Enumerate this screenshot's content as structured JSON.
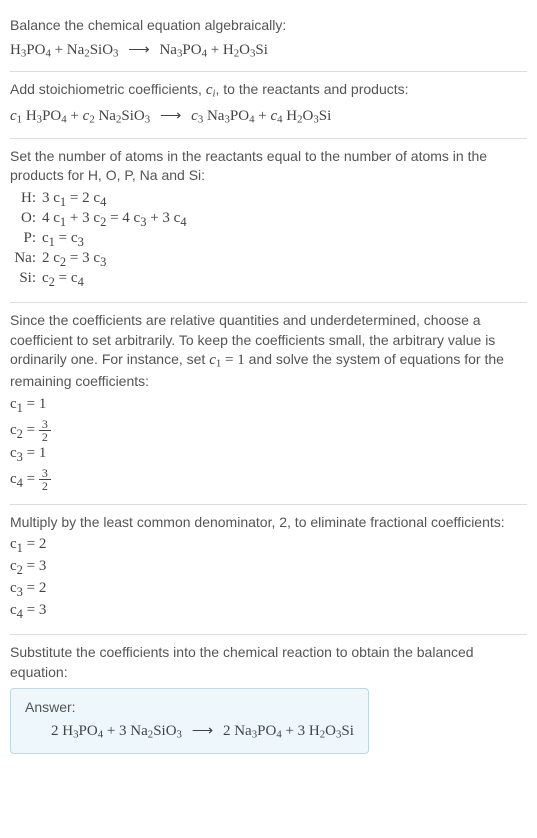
{
  "intro": {
    "label": "Balance the chemical equation algebraically:",
    "eq_lhs1": "H",
    "eq_lhs2": "PO",
    "eq_lhs3": " + Na",
    "eq_lhs4": "SiO",
    "eq_rhs1": "Na",
    "eq_rhs2": "PO",
    "eq_rhs3": " + H",
    "eq_rhs4": "O",
    "eq_rhs5": "Si",
    "arrow": "⟶"
  },
  "step_coeff_intro": {
    "text_a": "Add stoichiometric coefficients, ",
    "ci": "c",
    "ci_sub": "i",
    "text_b": ", to the reactants and products:"
  },
  "coeff_eq": {
    "c1": "c",
    "c1s": "1",
    "sp1": " H",
    "sp1b": "PO",
    "c2": "c",
    "c2s": "2",
    "sp2": " Na",
    "sp2b": "SiO",
    "c3": "c",
    "c3s": "3",
    "sp3": " Na",
    "sp3b": "PO",
    "c4": "c",
    "c4s": "4",
    "sp4": " H",
    "sp4b": "O",
    "sp4c": "Si",
    "arrow": "⟶"
  },
  "atoms_intro": "Set the number of atoms in the reactants equal to the number of atoms in the products for H, O, P, Na and Si:",
  "atom_rows": [
    {
      "elm": "H:",
      "eq": "3 c₁ = 2 c₄"
    },
    {
      "elm": "O:",
      "eq": "4 c₁ + 3 c₂ = 4 c₃ + 3 c₄"
    },
    {
      "elm": "P:",
      "eq": "c₁ = c₃"
    },
    {
      "elm": "Na:",
      "eq": "2 c₂ = 3 c₃"
    },
    {
      "elm": "Si:",
      "eq": "c₂ = c₄"
    }
  ],
  "relative_text_a": "Since the coefficients are relative quantities and underdetermined, choose a coefficient to set arbitrarily. To keep the coefficients small, the arbitrary value is ordinarily one. For instance, set ",
  "relative_c": "c",
  "relative_cs": "1",
  "relative_eq": " = 1",
  "relative_text_b": " and solve the system of equations for the remaining coefficients:",
  "solve": {
    "l1": "c₁ = 1",
    "l2_pre": "c₂ = ",
    "l3": "c₃ = 1",
    "l4_pre": "c₄ = ",
    "frac_n": "3",
    "frac_d": "2"
  },
  "lcm_text": "Multiply by the least common denominator, 2, to eliminate fractional coefficients:",
  "lcm": {
    "l1": "c₁ = 2",
    "l2": "c₂ = 3",
    "l3": "c₃ = 2",
    "l4": "c₄ = 3"
  },
  "subst_text": "Substitute the coefficients into the chemical reaction to obtain the balanced equation:",
  "answer": {
    "label": "Answer:",
    "a1": "2 H",
    "a2": "PO",
    "a3": " + 3 Na",
    "a4": "SiO",
    "arrow": "⟶",
    "b1": "2 Na",
    "b2": "PO",
    "b3": " + 3 H",
    "b4": "O",
    "b5": "Si"
  }
}
